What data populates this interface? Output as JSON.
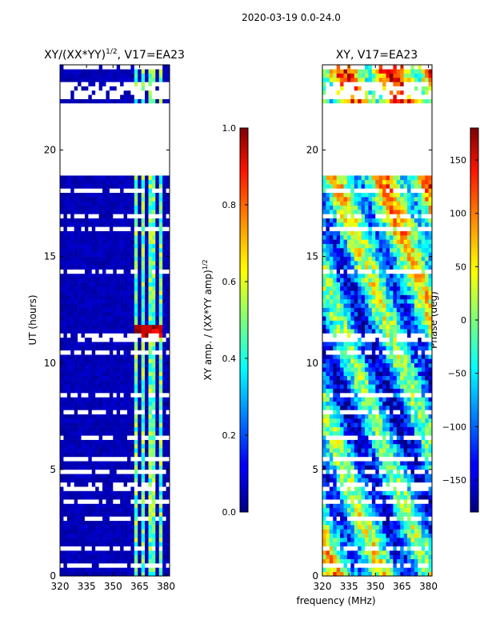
{
  "figure": {
    "suptitle": "2020-03-19 0.0-24.0",
    "xlabel": "frequency (MHz)",
    "left_title": "XY/(XX*YY)",
    "left_title_exp": "1/2",
    "left_title_suffix": ", V17=EA23",
    "right_title": "XY, V17=EA23"
  },
  "chart_data": [
    {
      "type": "heatmap",
      "name": "amplitude-ratio",
      "title": "XY/(XX*YY)^1/2, V17=EA23",
      "xlabel": "frequency (MHz)",
      "ylabel": "UT (hours)",
      "xlim": [
        320,
        382
      ],
      "ylim": [
        0,
        24
      ],
      "xticks": [
        320,
        335,
        350,
        365,
        380
      ],
      "yticks": [
        0,
        5,
        10,
        15,
        20
      ],
      "colormap": "jet",
      "color_range": [
        0.0,
        1.0
      ],
      "gap_hours": [
        [
          18.9,
          22.3
        ]
      ],
      "colorbar": {
        "label": "XY amp. / (XX*YY amp)",
        "label_exp": "1/2",
        "ticks": [
          0.0,
          0.2,
          0.4,
          0.6,
          0.8,
          1.0
        ],
        "tick_labels": [
          "0.0",
          "0.2",
          "0.4",
          "0.6",
          "0.8",
          "1.0"
        ]
      }
    },
    {
      "type": "heatmap",
      "name": "phase",
      "title": "XY, V17=EA23",
      "xlabel": "frequency (MHz)",
      "ylabel": "",
      "xlim": [
        320,
        382
      ],
      "ylim": [
        0,
        24
      ],
      "xticks": [
        320,
        335,
        350,
        365,
        380
      ],
      "yticks": [
        0,
        5,
        10,
        15,
        20
      ],
      "colormap": "jet",
      "color_range": [
        -180,
        180
      ],
      "gap_hours": [
        [
          18.9,
          22.3
        ]
      ],
      "colorbar": {
        "label": "Phase (deg)",
        "ticks": [
          -150,
          -100,
          -50,
          0,
          50,
          100,
          150
        ],
        "tick_labels": [
          "−150",
          "−100",
          "−50",
          "0",
          "50",
          "100",
          "150"
        ]
      }
    }
  ]
}
